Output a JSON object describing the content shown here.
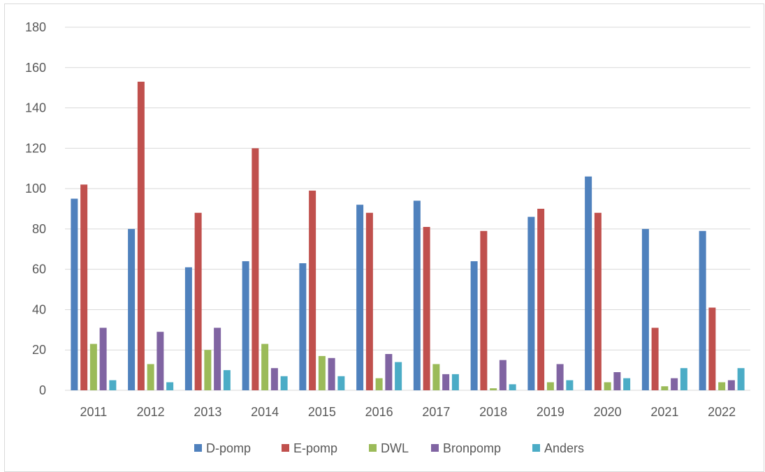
{
  "chart_data": {
    "type": "bar",
    "categories": [
      "2011",
      "2012",
      "2013",
      "2014",
      "2015",
      "2016",
      "2017",
      "2018",
      "2019",
      "2020",
      "2021",
      "2022"
    ],
    "series": [
      {
        "name": "D-pomp",
        "color": "#4f81bd",
        "values": [
          95,
          80,
          61,
          64,
          63,
          92,
          94,
          64,
          86,
          106,
          80,
          79
        ]
      },
      {
        "name": "E-pomp",
        "color": "#c0504d",
        "values": [
          102,
          153,
          88,
          120,
          99,
          88,
          81,
          79,
          90,
          88,
          31,
          41
        ]
      },
      {
        "name": "DWL",
        "color": "#9bbb59",
        "values": [
          23,
          13,
          20,
          23,
          17,
          6,
          13,
          1,
          4,
          4,
          2,
          4
        ]
      },
      {
        "name": "Bronpomp",
        "color": "#8064a2",
        "values": [
          31,
          29,
          31,
          11,
          16,
          18,
          8,
          15,
          13,
          9,
          6,
          5
        ]
      },
      {
        "name": "Anders",
        "color": "#4bacc6",
        "values": [
          5,
          4,
          10,
          7,
          7,
          14,
          8,
          3,
          5,
          6,
          11,
          11
        ]
      }
    ],
    "yticks": [
      "0",
      "20",
      "40",
      "60",
      "80",
      "100",
      "120",
      "140",
      "160",
      "180"
    ],
    "ylim": [
      0,
      180
    ],
    "grid": true,
    "legend_position": "bottom",
    "gridline_color": "#d9d9d9",
    "label_color": "#595959"
  }
}
